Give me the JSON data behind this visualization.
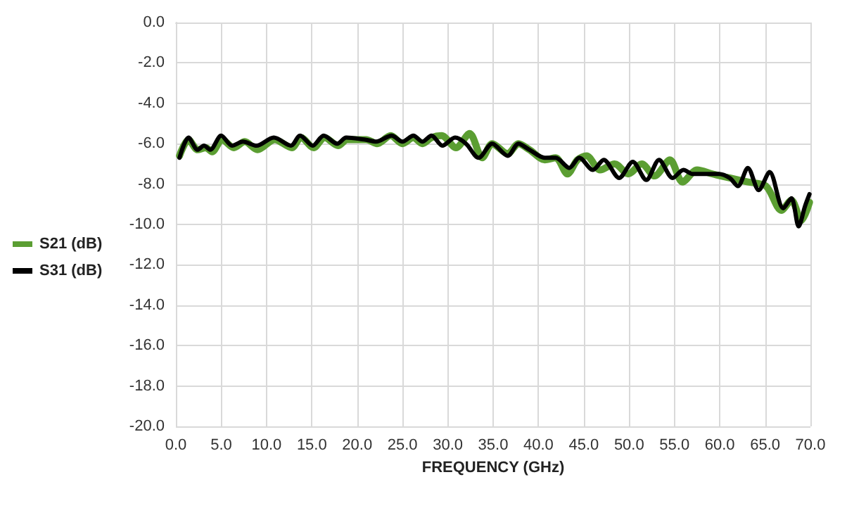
{
  "chart_data": {
    "type": "line",
    "xlabel": "FREQUENCY (GHz)",
    "xlim": [
      0,
      70
    ],
    "ylim": [
      -20,
      0
    ],
    "xticks": [
      {
        "value": 0,
        "label": "0.0"
      },
      {
        "value": 5,
        "label": "5.0"
      },
      {
        "value": 10,
        "label": "10.0"
      },
      {
        "value": 15,
        "label": "15.0"
      },
      {
        "value": 20,
        "label": "20.0"
      },
      {
        "value": 25,
        "label": "25.0"
      },
      {
        "value": 30,
        "label": "30.0"
      },
      {
        "value": 35,
        "label": "35.0"
      },
      {
        "value": 40,
        "label": "40.0"
      },
      {
        "value": 45,
        "label": "45.0"
      },
      {
        "value": 50,
        "label": "50.0"
      },
      {
        "value": 55,
        "label": "55.0"
      },
      {
        "value": 60,
        "label": "60.0"
      },
      {
        "value": 65,
        "label": "65.0"
      },
      {
        "value": 70,
        "label": "70.0"
      }
    ],
    "yticks": [
      {
        "value": -20,
        "label": "-20.0"
      },
      {
        "value": -18,
        "label": "-18.0"
      },
      {
        "value": -16,
        "label": "-16.0"
      },
      {
        "value": -14,
        "label": "-14.0"
      },
      {
        "value": -12,
        "label": "-12.0"
      },
      {
        "value": -10,
        "label": "-10.0"
      },
      {
        "value": -8,
        "label": "-8.0"
      },
      {
        "value": -6,
        "label": "-6.0"
      },
      {
        "value": -4,
        "label": "-4.0"
      },
      {
        "value": -2,
        "label": "-2.0"
      },
      {
        "value": 0,
        "label": "0.0"
      }
    ],
    "grid": true,
    "legend": "left",
    "marker": "none",
    "line_style": "solid",
    "series": [
      {
        "name": "S21 (dB)",
        "color": "#5b9e32",
        "x": [
          0.4,
          1.4,
          2.4,
          3.3,
          4.0,
          5.1,
          6.4,
          7.6,
          9.0,
          10.9,
          12.8,
          13.8,
          15.2,
          16.4,
          17.9,
          18.9,
          21.0,
          22.2,
          23.7,
          25.0,
          26.2,
          27.2,
          28.2,
          29.3,
          30.9,
          32.4,
          33.8,
          34.9,
          36.6,
          37.8,
          39.0,
          40.7,
          41.9,
          43.2,
          44.3,
          45.3,
          46.8,
          48.4,
          49.9,
          51.4,
          52.8,
          54.5,
          55.9,
          57.5,
          59.2,
          61.1,
          63.1,
          65.1,
          66.8,
          67.9,
          69.0,
          69.9
        ],
        "values": [
          -6.6,
          -5.8,
          -6.3,
          -6.2,
          -6.4,
          -5.8,
          -6.2,
          -5.9,
          -6.3,
          -5.8,
          -6.2,
          -5.7,
          -6.2,
          -5.7,
          -6.1,
          -5.8,
          -5.8,
          -6.0,
          -5.6,
          -6.0,
          -5.7,
          -6.0,
          -5.7,
          -5.6,
          -6.2,
          -5.5,
          -6.7,
          -6.0,
          -6.5,
          -6.0,
          -6.3,
          -6.8,
          -6.7,
          -7.5,
          -6.8,
          -6.6,
          -7.3,
          -7.0,
          -7.5,
          -7.0,
          -7.6,
          -6.8,
          -7.9,
          -7.3,
          -7.5,
          -7.7,
          -7.9,
          -8.1,
          -9.3,
          -8.8,
          -9.8,
          -8.9
        ]
      },
      {
        "name": "S31 (dB)",
        "color": "#000000",
        "x": [
          0.4,
          1.4,
          2.4,
          3.1,
          3.8,
          5.0,
          6.2,
          7.4,
          8.9,
          10.8,
          12.7,
          13.7,
          15.1,
          16.3,
          17.8,
          18.8,
          20.9,
          22.1,
          23.8,
          25.0,
          26.2,
          27.2,
          28.2,
          29.4,
          30.8,
          32.0,
          33.4,
          34.9,
          36.6,
          37.8,
          39.0,
          40.7,
          41.9,
          43.4,
          44.5,
          46.0,
          47.2,
          48.9,
          50.4,
          51.9,
          53.3,
          54.8,
          56.0,
          57.0,
          58.7,
          59.9,
          61.1,
          62.0,
          63.1,
          64.3,
          65.5,
          67.0,
          67.9,
          68.7,
          69.4,
          69.9
        ],
        "values": [
          -6.7,
          -5.7,
          -6.3,
          -6.1,
          -6.3,
          -5.6,
          -6.1,
          -5.9,
          -6.1,
          -5.7,
          -6.1,
          -5.6,
          -6.1,
          -5.6,
          -6.0,
          -5.7,
          -5.8,
          -5.9,
          -5.6,
          -5.9,
          -5.6,
          -5.9,
          -5.6,
          -6.1,
          -5.7,
          -6.0,
          -6.7,
          -6.0,
          -6.6,
          -6.0,
          -6.3,
          -6.7,
          -6.7,
          -7.2,
          -6.7,
          -7.3,
          -6.8,
          -7.7,
          -6.9,
          -7.8,
          -6.8,
          -7.7,
          -7.3,
          -7.5,
          -7.5,
          -7.5,
          -7.7,
          -8.1,
          -7.2,
          -8.3,
          -7.4,
          -9.2,
          -8.7,
          -10.1,
          -9.1,
          -8.5
        ]
      }
    ]
  }
}
